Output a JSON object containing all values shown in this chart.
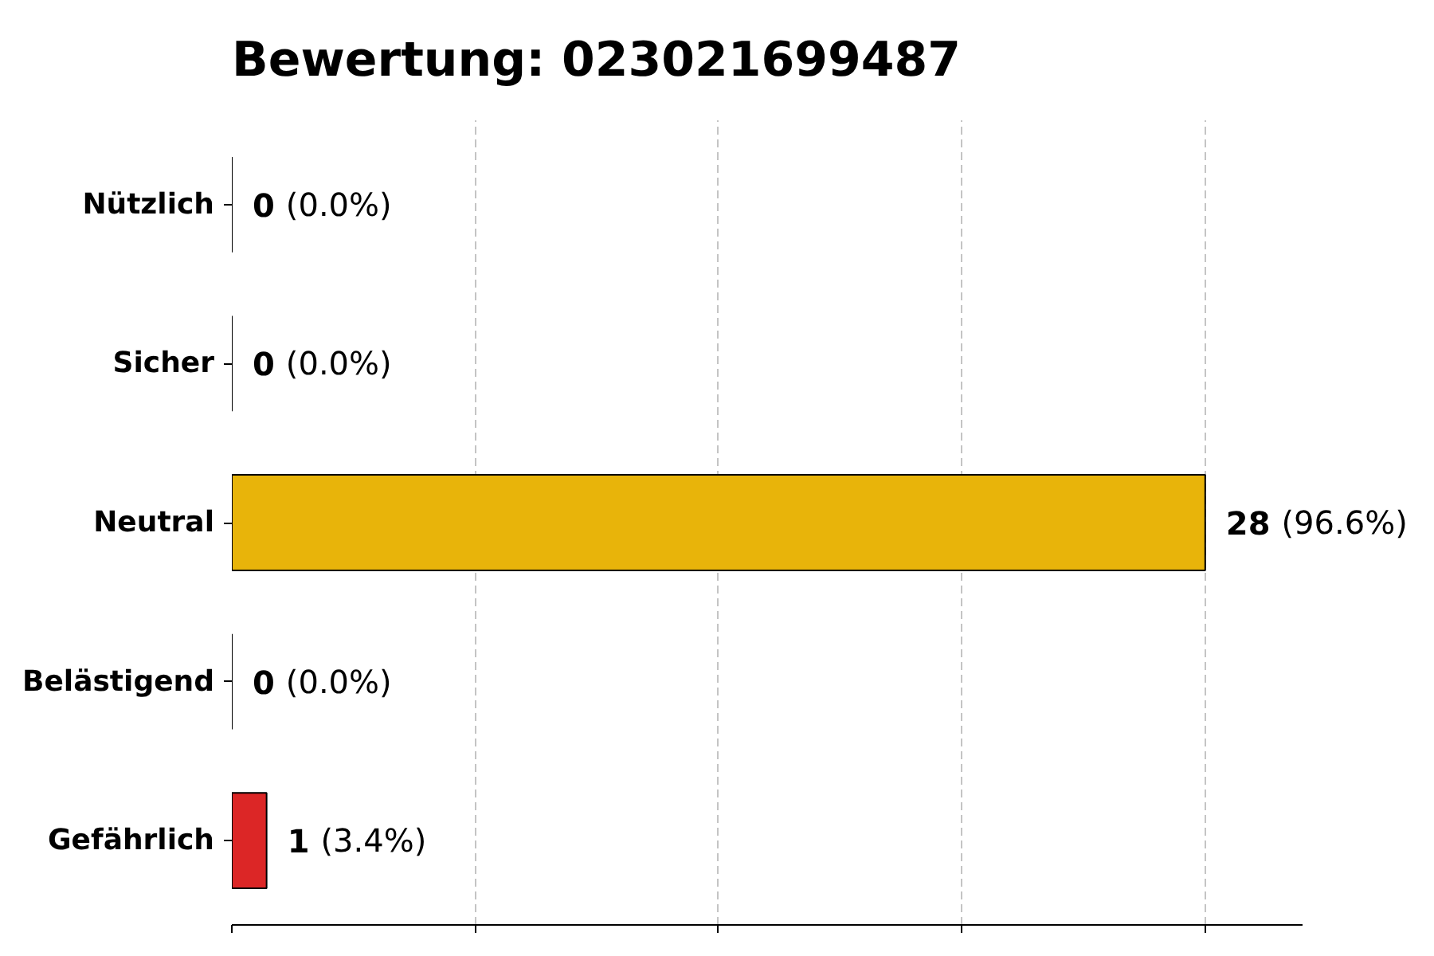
{
  "chart_data": {
    "type": "bar",
    "orientation": "horizontal",
    "title": "Bewertung: 023021699487",
    "categories": [
      "Nützlich",
      "Sicher",
      "Neutral",
      "Belästigend",
      "Gefährlich"
    ],
    "values": [
      0,
      0,
      28,
      0,
      1
    ],
    "colors": [
      null,
      null,
      "#e8b40a",
      null,
      "#dc2626"
    ],
    "value_labels": [
      "0 (0.0%)",
      "0 (0.0%)",
      "28 (96.6%)",
      "0 (0.0%)",
      "1 (3.4%)"
    ],
    "xlim": [
      0,
      30.8
    ],
    "xticks": [
      {
        "value": 0,
        "label": null
      },
      {
        "value": 7,
        "label": null
      },
      {
        "value": 14,
        "label": null
      },
      {
        "value": 21,
        "label": null
      },
      {
        "value": 28,
        "label": null
      }
    ],
    "tick_labels": "y",
    "grid": "x"
  }
}
